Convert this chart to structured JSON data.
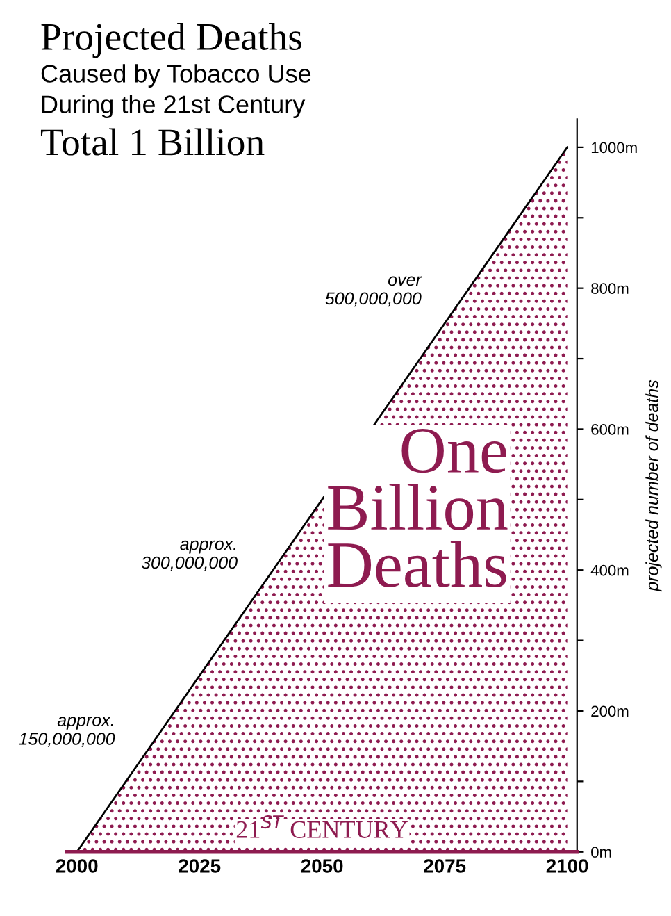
{
  "chart_data": {
    "type": "area",
    "title": "Projected Deaths",
    "subtitle": "Caused by Tobacco Use\nDuring the 21st Century",
    "ylabel": "projected number of deaths",
    "x": [
      2000,
      2100
    ],
    "series": [
      {
        "color": "#8e1b50",
        "values": [
          0,
          1000
        ]
      }
    ],
    "xlim": [
      1998,
      2102
    ],
    "ylim": [
      0,
      1040
    ],
    "xticks": [
      2000,
      2025,
      2050,
      2075,
      2100
    ],
    "yticks": [
      {
        "value": 0,
        "label": "0m"
      },
      {
        "value": 100,
        "label": null
      },
      {
        "value": 200,
        "label": "200m"
      },
      {
        "value": 300,
        "label": null
      },
      {
        "value": 400,
        "label": "400m"
      },
      {
        "value": 500,
        "label": null
      },
      {
        "value": 600,
        "label": "600m"
      },
      {
        "value": 700,
        "label": null
      },
      {
        "value": 800,
        "label": "800m"
      },
      {
        "value": 900,
        "label": null
      },
      {
        "value": 1000,
        "label": "1000m"
      }
    ],
    "annotations": [
      "Total 1 Billion",
      {
        "text": "approx.\n150,000,000",
        "x": 2012.5,
        "y": 125
      },
      {
        "text": "approx.\n300,000,000",
        "x": 2037.5,
        "y": 375
      },
      {
        "text": "over\n500,000,000",
        "x": 2075,
        "y": 750
      },
      "One\nBillion\nDeaths",
      "21$^{ST}$ CENTURY"
    ],
    "grid": false,
    "legend": false
  }
}
